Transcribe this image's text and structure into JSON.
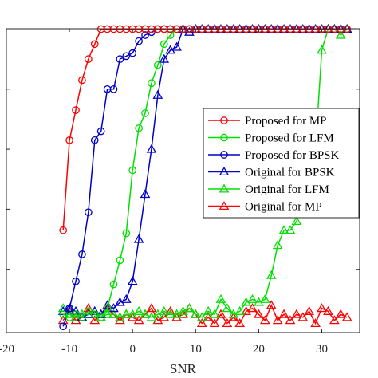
{
  "chart_data": {
    "type": "line",
    "title": "",
    "xlabel": "SNR",
    "ylabel": "",
    "xlim": [
      -20,
      36
    ],
    "ylim": [
      0,
      1
    ],
    "xticks": [
      -20,
      -10,
      0,
      10,
      20,
      30
    ],
    "xtick_labels": [
      "-20",
      "-10",
      "0",
      "10",
      "20",
      "30"
    ],
    "grid": false,
    "legend_placement": "center-right",
    "series": [
      {
        "name": "Proposed for MP",
        "color": "#ff0000",
        "marker": "circle",
        "x": [
          -11,
          -10,
          -9,
          -8,
          -7,
          -6,
          -5,
          -4,
          -3,
          -2,
          -1,
          0,
          1,
          2,
          3,
          4,
          5,
          6,
          7,
          8,
          9,
          10,
          11,
          12,
          13,
          14,
          15,
          16,
          17,
          18,
          19,
          20,
          21,
          22,
          23,
          24,
          25,
          26,
          27,
          28,
          29,
          30,
          31,
          32,
          33,
          34
        ],
        "y": [
          0.33,
          0.63,
          0.73,
          0.83,
          0.9,
          0.95,
          1,
          1,
          1,
          1,
          1,
          1,
          1,
          1,
          1,
          1,
          1,
          1,
          1,
          1,
          1,
          1,
          1,
          1,
          1,
          1,
          1,
          1,
          1,
          1,
          1,
          1,
          1,
          1,
          1,
          1,
          1,
          1,
          1,
          1,
          1,
          1,
          1,
          1,
          1,
          1
        ]
      },
      {
        "name": "Proposed for LFM",
        "color": "#00e000",
        "marker": "circle",
        "x": [
          -11,
          -10,
          -9,
          -8,
          -7,
          -6,
          -5,
          -4,
          -3,
          -2,
          -1,
          0,
          1,
          2,
          3,
          4,
          5,
          6,
          7,
          8,
          9,
          10,
          11,
          12,
          13,
          14,
          15,
          16,
          17,
          18,
          19,
          20,
          21,
          22,
          23,
          24,
          25,
          26,
          27,
          28,
          29,
          30,
          31,
          32,
          33,
          34
        ],
        "y": [
          0.05,
          0.04,
          0.05,
          0.04,
          0.06,
          0.05,
          0.04,
          0.07,
          0.15,
          0.23,
          0.32,
          0.53,
          0.67,
          0.72,
          0.82,
          0.88,
          0.95,
          0.98,
          1,
          1,
          1,
          1,
          1,
          1,
          1,
          1,
          1,
          1,
          1,
          1,
          1,
          1,
          1,
          1,
          1,
          1,
          1,
          1,
          1,
          1,
          1,
          1,
          1,
          1,
          1,
          1
        ]
      },
      {
        "name": "Proposed for BPSK",
        "color": "#0000c8",
        "marker": "circle",
        "x": [
          -11,
          -10,
          -9,
          -8,
          -7,
          -6,
          -5,
          -4,
          -3,
          -2,
          -1,
          0,
          1,
          2,
          3,
          4,
          5,
          6,
          7,
          8,
          9,
          10,
          11,
          12,
          13,
          14,
          15,
          16,
          17,
          18,
          19,
          20,
          21,
          22,
          23,
          24,
          25,
          26,
          27,
          28,
          29,
          30,
          31,
          32,
          33,
          34
        ],
        "y": [
          0.01,
          0.07,
          0.16,
          0.25,
          0.39,
          0.63,
          0.66,
          0.8,
          0.8,
          0.9,
          0.91,
          0.92,
          0.96,
          0.98,
          0.99,
          1,
          1,
          1,
          1,
          1,
          1,
          1,
          1,
          1,
          1,
          1,
          1,
          1,
          1,
          1,
          1,
          1,
          1,
          1,
          1,
          1,
          1,
          1,
          1,
          1,
          1,
          1,
          1,
          1,
          1,
          1
        ]
      },
      {
        "name": "Original for BPSK",
        "color": "#0000c8",
        "marker": "triangle",
        "x": [
          -11,
          -10,
          -9,
          -8,
          -7,
          -6,
          -5,
          -4,
          -3,
          -2,
          -1,
          0,
          1,
          2,
          3,
          4,
          5,
          6,
          7,
          8,
          9,
          10,
          11,
          12,
          13,
          14,
          15,
          16,
          17,
          18,
          19,
          20,
          21,
          22,
          23,
          24,
          25,
          26,
          27,
          28,
          29,
          30,
          31,
          32,
          33,
          34
        ],
        "y": [
          0.06,
          0.07,
          0.06,
          0.04,
          0.05,
          0.06,
          0.05,
          0.08,
          0.07,
          0.09,
          0.1,
          0.16,
          0.3,
          0.45,
          0.6,
          0.78,
          0.9,
          0.93,
          0.94,
          1,
          0.99,
          1,
          1,
          1,
          1,
          1,
          1,
          1,
          1,
          1,
          1,
          1,
          1,
          1,
          1,
          1,
          1,
          1,
          1,
          1,
          1,
          1,
          1,
          1,
          1,
          1
        ]
      },
      {
        "name": "Original for LFM",
        "color": "#00e000",
        "marker": "triangle",
        "x": [
          -11,
          -10,
          -9,
          -8,
          -7,
          -6,
          -5,
          -4,
          -3,
          -2,
          -1,
          0,
          1,
          2,
          3,
          4,
          5,
          6,
          7,
          8,
          9,
          10,
          11,
          12,
          13,
          14,
          15,
          16,
          17,
          18,
          19,
          20,
          21,
          22,
          23,
          24,
          25,
          26,
          27,
          28,
          29,
          30,
          31,
          32,
          33,
          34
        ],
        "y": [
          0.07,
          0.05,
          0.04,
          0.05,
          0.05,
          0.06,
          0.04,
          0.05,
          0.05,
          0.04,
          0.05,
          0.05,
          0.06,
          0.05,
          0.04,
          0.05,
          0.06,
          0.05,
          0.05,
          0.06,
          0.07,
          0.05,
          0.04,
          0.06,
          0.05,
          0.1,
          0.07,
          0.05,
          0.06,
          0.09,
          0.1,
          0.09,
          0.1,
          0.18,
          0.28,
          0.33,
          0.33,
          0.36,
          0.45,
          0.55,
          0.6,
          0.93,
          1,
          1,
          0.98,
          1
        ]
      },
      {
        "name": "Original for MP",
        "color": "#ff0000",
        "marker": "triangle",
        "x": [
          -11,
          -10,
          -9,
          -8,
          -7,
          -6,
          -5,
          -4,
          -3,
          -2,
          -1,
          0,
          1,
          2,
          3,
          4,
          5,
          6,
          7,
          8,
          9,
          10,
          11,
          12,
          13,
          14,
          15,
          16,
          17,
          18,
          19,
          20,
          21,
          22,
          23,
          24,
          25,
          26,
          27,
          28,
          29,
          30,
          31,
          32,
          33,
          34
        ],
        "y": [
          0.03,
          0.06,
          0.03,
          0.04,
          0.07,
          0.03,
          0.05,
          0.07,
          0.05,
          0.03,
          0.05,
          0.04,
          0.03,
          0.05,
          0.07,
          0.03,
          0.04,
          0.06,
          0.04,
          0.05,
          0.07,
          0.05,
          0.02,
          0.04,
          0.02,
          0.05,
          0.02,
          0.04,
          0.02,
          0.06,
          0.07,
          0.05,
          0.03,
          0.08,
          0.03,
          0.05,
          0.03,
          0.05,
          0.04,
          0.06,
          0.02,
          0.07,
          0.06,
          0.03,
          0.05,
          0.04
        ]
      }
    ]
  }
}
